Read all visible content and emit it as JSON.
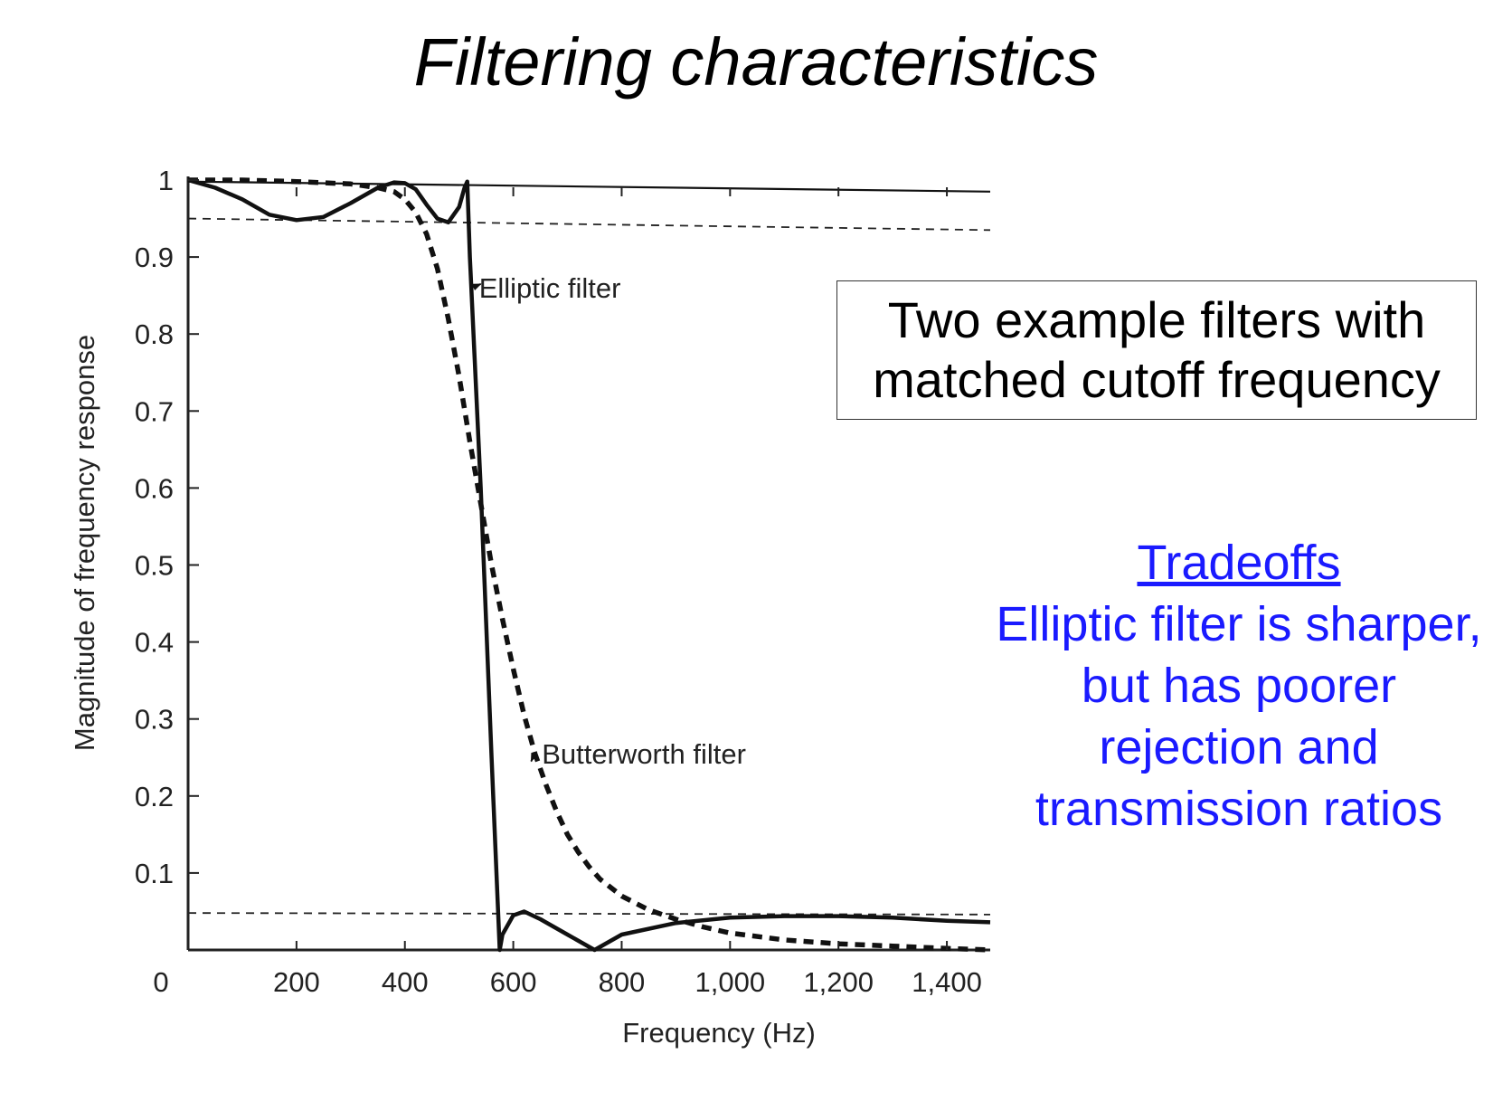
{
  "slide": {
    "title": "Filtering characteristics",
    "box_lines": [
      "Two example filters with",
      "matched cutoff frequency"
    ],
    "tradeoffs_heading": "Tradeoffs",
    "tradeoffs_lines": [
      "Elliptic filter is sharper,",
      "but has poorer",
      "rejection and",
      "transmission ratios"
    ],
    "accent_color": "#1a1aff"
  },
  "chart_data": {
    "type": "line",
    "xlabel": "Frequency (Hz)",
    "ylabel": "Magnitude of frequency response",
    "xlim": [
      0,
      1480
    ],
    "ylim": [
      0,
      1
    ],
    "x_ticks": [
      0,
      200,
      400,
      600,
      800,
      1000,
      1200,
      1400
    ],
    "x_tick_labels": [
      "0",
      "200",
      "400",
      "600",
      "800",
      "1,000",
      "1,200",
      "1,400"
    ],
    "y_ticks": [
      0.1,
      0.2,
      0.3,
      0.4,
      0.5,
      0.6,
      0.7,
      0.8,
      0.9,
      1
    ],
    "y_tick_labels": [
      "0.1",
      "0.2",
      "0.3",
      "0.4",
      "0.5",
      "0.6",
      "0.7",
      "0.8",
      "0.9",
      "1"
    ],
    "series": [
      {
        "name": "Elliptic filter",
        "style": "solid",
        "x": [
          0,
          50,
          100,
          150,
          200,
          250,
          300,
          350,
          380,
          400,
          420,
          440,
          460,
          480,
          500,
          510,
          515,
          520,
          540,
          560,
          575,
          580,
          600,
          620,
          650,
          700,
          750,
          800,
          900,
          1000,
          1100,
          1200,
          1300,
          1400,
          1480
        ],
        "y": [
          1.0,
          0.99,
          0.975,
          0.955,
          0.948,
          0.952,
          0.97,
          0.99,
          0.997,
          0.996,
          0.988,
          0.968,
          0.95,
          0.945,
          0.965,
          0.99,
          0.998,
          0.9,
          0.6,
          0.25,
          0.0,
          0.02,
          0.045,
          0.05,
          0.04,
          0.02,
          0.0,
          0.02,
          0.035,
          0.042,
          0.044,
          0.044,
          0.042,
          0.038,
          0.036
        ]
      },
      {
        "name": "Butterworth filter",
        "style": "dashed",
        "x": [
          0,
          100,
          200,
          300,
          350,
          380,
          400,
          420,
          440,
          460,
          480,
          500,
          520,
          540,
          560,
          580,
          600,
          620,
          640,
          660,
          680,
          700,
          720,
          740,
          760,
          800,
          850,
          900,
          950,
          1000,
          1100,
          1200,
          1300,
          1400,
          1480
        ],
        "y": [
          1.0,
          1.0,
          0.998,
          0.995,
          0.99,
          0.985,
          0.975,
          0.958,
          0.93,
          0.885,
          0.82,
          0.745,
          0.66,
          0.58,
          0.5,
          0.43,
          0.365,
          0.305,
          0.255,
          0.215,
          0.18,
          0.15,
          0.127,
          0.108,
          0.092,
          0.07,
          0.052,
          0.04,
          0.03,
          0.022,
          0.013,
          0.008,
          0.005,
          0.002,
          0.0
        ]
      },
      {
        "name": "",
        "style": "thin",
        "x": [
          0,
          1480
        ],
        "y": [
          0.998,
          0.985
        ]
      }
    ],
    "reference_lines": [
      {
        "style": "dashed-thin",
        "x": [
          0,
          1480
        ],
        "y": [
          0.95,
          0.935
        ]
      },
      {
        "style": "dashed-thin",
        "x": [
          0,
          1480
        ],
        "y": [
          0.048,
          0.046
        ]
      }
    ],
    "annotations": [
      {
        "text": "Elliptic filter",
        "x": 742,
        "y": 0.86,
        "arrow_to": [
          540,
          0.865
        ]
      },
      {
        "text": "Butterworth filter",
        "x": 858,
        "y": 0.255,
        "arrow_to": [
          633,
          0.245
        ]
      }
    ],
    "grid": false,
    "legend": "none"
  }
}
